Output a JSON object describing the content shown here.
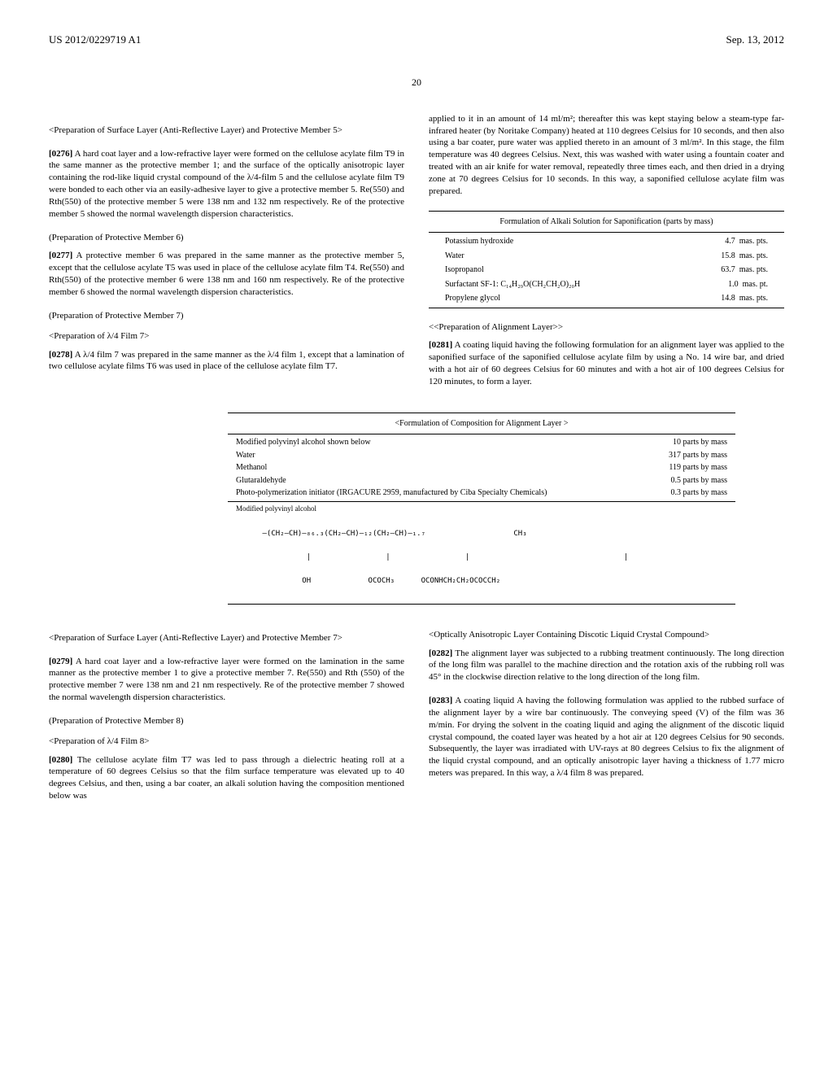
{
  "header": {
    "left": "US 2012/0229719 A1",
    "right": "Sep. 13, 2012"
  },
  "pageNum": "20",
  "leftCol": {
    "title1": "<Preparation of Surface Layer (Anti-Reflective Layer) and Protective Member 5>",
    "para276": {
      "num": "[0276]",
      "text": "A hard coat layer and a low-refractive layer were formed on the cellulose acylate film T9 in the same manner as the protective member 1; and the surface of the optically anisotropic layer containing the rod-like liquid crystal compound of the λ/4-film 5 and the cellulose acylate film T9 were bonded to each other via an easily-adhesive layer to give a protective member 5. Re(550) and Rth(550) of the protective member 5 were 138 nm and 132 nm respectively. Re of the protective member 5 showed the normal wavelength dispersion characteristics."
    },
    "subtitle2": "(Preparation of Protective Member 6)",
    "para277": {
      "num": "[0277]",
      "text": "A protective member 6 was prepared in the same manner as the protective member 5, except that the cellulose acylate T5 was used in place of the cellulose acylate film T4. Re(550) and Rth(550) of the protective member 6 were 138 nm and 160 nm respectively. Re of the protective member 6 showed the normal wavelength dispersion characteristics."
    },
    "subtitle3": "(Preparation of Protective Member 7)",
    "subtitle4": "<Preparation of λ/4 Film 7>",
    "para278": {
      "num": "[0278]",
      "text": "A λ/4 film 7 was prepared in the same manner as the λ/4 film 1, except that a lamination of two cellulose acylate films T6 was used in place of the cellulose acylate film T7."
    },
    "title5": "<Preparation of Surface Layer (Anti-Reflective Layer) and Protective Member 7>",
    "para279": {
      "num": "[0279]",
      "text": "A hard coat layer and a low-refractive layer were formed on the lamination in the same manner as the protective member 1 to give a protective member 7. Re(550) and Rth (550) of the protective member 7 were 138 nm and 21 nm respectively. Re of the protective member 7 showed the normal wavelength dispersion characteristics."
    },
    "subtitle6": "(Preparation of Protective Member 8)",
    "subtitle7": "<Preparation of λ/4 Film 8>",
    "para280": {
      "num": "[0280]",
      "text": "The cellulose acylate film T7 was led to pass through a dielectric heating roll at a temperature of 60 degrees Celsius so that the film surface temperature was elevated up to 40 degrees Celsius, and then, using a bar coater, an alkali solution having the composition mentioned below was"
    }
  },
  "rightCol": {
    "para_cont": "applied to it in an amount of 14 ml/m²; thereafter this was kept staying below a steam-type far-infrared heater (by Noritake Company) heated at 110 degrees Celsius for 10 seconds, and then also using a bar coater, pure water was applied thereto in an amount of 3 ml/m². In this stage, the film temperature was 40 degrees Celsius. Next, this was washed with water using a fountain coater and treated with an air knife for water removal, repeatedly three times each, and then dried in a drying zone at 70 degrees Celsius for 10 seconds. In this way, a saponified cellulose acylate film was prepared.",
    "table1": {
      "title": "Formulation of Alkali Solution for Saponification (parts by mass)",
      "rows": [
        {
          "name": "Potassium hydroxide",
          "val": "4.7",
          "unit": "mas. pts."
        },
        {
          "name": "Water",
          "val": "15.8",
          "unit": "mas. pts."
        },
        {
          "name": "Isopropanol",
          "val": "63.7",
          "unit": "mas. pts."
        },
        {
          "name": "Surfactant SF-1: C₁₄H₂₉O(CH₂CH₂O)₂₀H",
          "val": "1.0",
          "unit": "mas. pt."
        },
        {
          "name": "Propylene glycol",
          "val": "14.8",
          "unit": "mas. pts."
        }
      ]
    },
    "subtitle_align": "<<Preparation of Alignment Layer>>",
    "para281": {
      "num": "[0281]",
      "text": "A coating liquid having the following formulation for an alignment layer was applied to the saponified surface of the saponified cellulose acylate film by using a No. 14 wire bar, and dried with a hot air of 60 degrees Celsius for 60 minutes and with a hot air of 100 degrees Celsius for 120 minutes, to form a layer."
    },
    "subtitle_optical": "<Optically Anisotropic Layer Containing Discotic Liquid Crystal Compound>",
    "para282": {
      "num": "[0282]",
      "text": "The alignment layer was subjected to a rubbing treatment continuously. The long direction of the long film was parallel to the machine direction and the rotation axis of the rubbing roll was 45° in the clockwise direction relative to the long direction of the long film."
    },
    "para283": {
      "num": "[0283]",
      "text": "A coating liquid A having the following formulation was applied to the rubbed surface of the alignment layer by a wire bar continuously. The conveying speed (V) of the film was 36 m/min. For drying the solvent in the coating liquid and aging the alignment of the discotic liquid crystal compound, the coated layer was heated by a hot air at 120 degrees Celsius for 90 seconds. Subsequently, the layer was irradiated with UV-rays at 80 degrees Celsius to fix the alignment of the liquid crystal compound, and an optically anisotropic layer having a thickness of 1.77 micro meters was prepared. In this way, a λ/4 film 8 was prepared."
    }
  },
  "table2": {
    "title": "<Formulation of Composition for Alignment Layer >",
    "rows": [
      {
        "name": "Modified polyvinyl alcohol shown below",
        "val": "10 parts by mass"
      },
      {
        "name": "Water",
        "val": "317 parts by mass"
      },
      {
        "name": "Methanol",
        "val": "119 parts by mass"
      },
      {
        "name": "Glutaraldehyde",
        "val": "0.5 parts by mass"
      },
      {
        "name": "Photo-polymerization initiator (IRGACURE 2959, manufactured by Ciba Specialty Chemicals)",
        "val": "0.3 parts by mass"
      }
    ],
    "formula_label": "Modified polyvinyl alcohol",
    "formula": "—(CH₂—CH)—₈₆.₃(CH₂—CH)—₁₂(CH₂—CH)—₁.₇                    CH₃",
    "formula2": "          |                 |                 |                                   |",
    "formula3": "         OH             OCOCH₃      OCONHCH₂CH₂OCOCCH₂"
  }
}
